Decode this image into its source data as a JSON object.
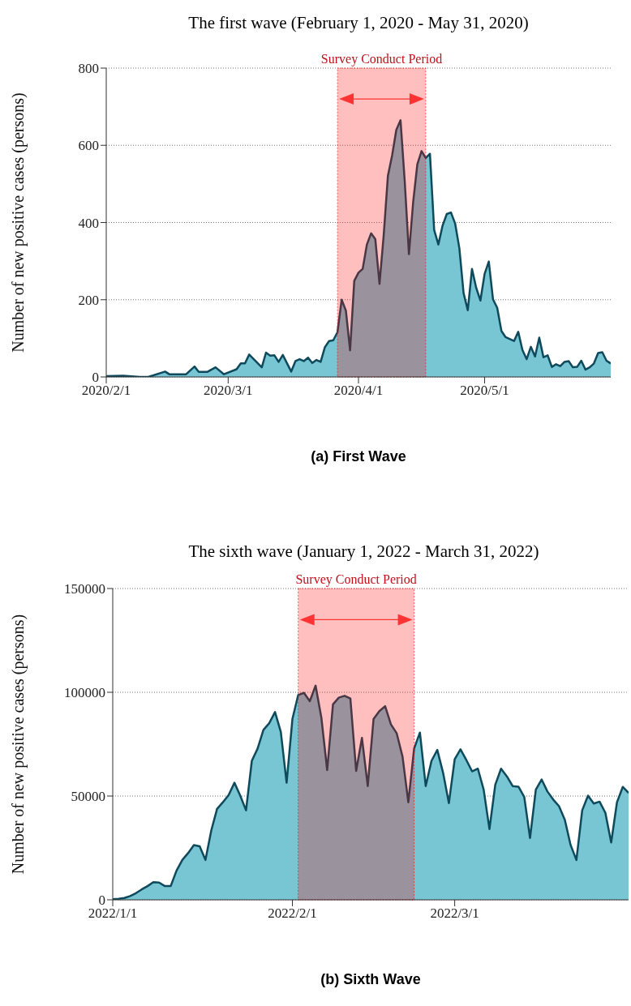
{
  "chart_data": [
    {
      "type": "area",
      "title": "The first wave (February 1, 2020 - May 31, 2020)",
      "ylabel": "Number of new positive cases (persons)",
      "annotations": [
        "(a) First Wave"
      ],
      "x": [
        "2020-02-01",
        "2020-02-05",
        "2020-02-09",
        "2020-02-11",
        "2020-02-15",
        "2020-02-16",
        "2020-02-20",
        "2020-02-22",
        "2020-02-23",
        "2020-02-25",
        "2020-02-27",
        "2020-02-29",
        "2020-03-03",
        "2020-03-04",
        "2020-03-05",
        "2020-03-06",
        "2020-03-09",
        "2020-03-10",
        "2020-03-11",
        "2020-03-12",
        "2020-03-13",
        "2020-03-14",
        "2020-03-16",
        "2020-03-17",
        "2020-03-18",
        "2020-03-19",
        "2020-03-20",
        "2020-03-21",
        "2020-03-22",
        "2020-03-23",
        "2020-03-24",
        "2020-03-25",
        "2020-03-26",
        "2020-03-27",
        "2020-03-28",
        "2020-03-29",
        "2020-03-30",
        "2020-03-31",
        "2020-04-01",
        "2020-04-02",
        "2020-04-03",
        "2020-04-04",
        "2020-04-05",
        "2020-04-06",
        "2020-04-07",
        "2020-04-08",
        "2020-04-09",
        "2020-04-10",
        "2020-04-11",
        "2020-04-12",
        "2020-04-13",
        "2020-04-14",
        "2020-04-15",
        "2020-04-16",
        "2020-04-17",
        "2020-04-18",
        "2020-04-19",
        "2020-04-20",
        "2020-04-21",
        "2020-04-22",
        "2020-04-23",
        "2020-04-24",
        "2020-04-25",
        "2020-04-26",
        "2020-04-27",
        "2020-04-28",
        "2020-04-29",
        "2020-04-30",
        "2020-05-01",
        "2020-05-02",
        "2020-05-03",
        "2020-05-04",
        "2020-05-05",
        "2020-05-06",
        "2020-05-08",
        "2020-05-09",
        "2020-05-10",
        "2020-05-11",
        "2020-05-12",
        "2020-05-13",
        "2020-05-14",
        "2020-05-15",
        "2020-05-16",
        "2020-05-17",
        "2020-05-18",
        "2020-05-19",
        "2020-05-20",
        "2020-05-21",
        "2020-05-22",
        "2020-05-23",
        "2020-05-24",
        "2020-05-25",
        "2020-05-26",
        "2020-05-27",
        "2020-05-28",
        "2020-05-29",
        "2020-05-30",
        "2020-05-31"
      ],
      "series": [
        {
          "color": "#78c5d3",
          "values": [
            2,
            3,
            0,
            0,
            14,
            7,
            7,
            27,
            13,
            13,
            25,
            7,
            20,
            35,
            35,
            58,
            25,
            63,
            55,
            56,
            39,
            57,
            14,
            41,
            46,
            41,
            50,
            36,
            44,
            39,
            77,
            93,
            95,
            116,
            200,
            172,
            69,
            249,
            270,
            280,
            343,
            372,
            357,
            241,
            367,
            521,
            574,
            640,
            665,
            507,
            318,
            452,
            551,
            585,
            567,
            578,
            381,
            343,
            392,
            422,
            426,
            397,
            333,
            217,
            173,
            280,
            231,
            198,
            267,
            299,
            201,
            179,
            119,
            103,
            93,
            117,
            70,
            46,
            78,
            53,
            102,
            51,
            56,
            26,
            33,
            28,
            39,
            41,
            25,
            26,
            42,
            19,
            25,
            35,
            62,
            64,
            42,
            35
          ]
        }
      ],
      "xlim": [
        "2020-02-01",
        "2020-05-31"
      ],
      "xticks": [
        {
          "value": "2020-02-01",
          "label": "2020/2/1"
        },
        {
          "value": "2020-03-01",
          "label": "2020/3/1"
        },
        {
          "value": "2020-04-01",
          "label": "2020/4/1"
        },
        {
          "value": "2020-05-01",
          "label": "2020/5/1"
        }
      ],
      "ylim": [
        0,
        800
      ],
      "yticks": [
        0,
        200,
        400,
        600,
        800
      ],
      "grid": "y",
      "bands": [
        {
          "axis": "x",
          "from": "2020-03-27",
          "to": "2020-04-17",
          "label": "Survey Conduct Period",
          "color": "#ff0000"
        }
      ]
    },
    {
      "type": "area",
      "title": "The sixth wave (January 1, 2022 - March 31, 2022)",
      "ylabel": "Number of new positive cases (persons)",
      "annotations": [
        "(b) Sixth Wave"
      ],
      "x": [
        "2022-01-01",
        "2022-01-02",
        "2022-01-03",
        "2022-01-04",
        "2022-01-05",
        "2022-01-06",
        "2022-01-07",
        "2022-01-08",
        "2022-01-09",
        "2022-01-10",
        "2022-01-11",
        "2022-01-12",
        "2022-01-13",
        "2022-01-14",
        "2022-01-15",
        "2022-01-16",
        "2022-01-17",
        "2022-01-18",
        "2022-01-19",
        "2022-01-20",
        "2022-01-21",
        "2022-01-22",
        "2022-01-23",
        "2022-01-24",
        "2022-01-25",
        "2022-01-26",
        "2022-01-27",
        "2022-01-28",
        "2022-01-29",
        "2022-01-30",
        "2022-01-31",
        "2022-02-01",
        "2022-02-02",
        "2022-02-03",
        "2022-02-04",
        "2022-02-05",
        "2022-02-06",
        "2022-02-07",
        "2022-02-08",
        "2022-02-09",
        "2022-02-10",
        "2022-02-11",
        "2022-02-12",
        "2022-02-13",
        "2022-02-14",
        "2022-02-15",
        "2022-02-16",
        "2022-02-17",
        "2022-02-18",
        "2022-02-19",
        "2022-02-20",
        "2022-02-21",
        "2022-02-22",
        "2022-02-23",
        "2022-02-24",
        "2022-02-25",
        "2022-02-26",
        "2022-02-27",
        "2022-02-28",
        "2022-03-01",
        "2022-03-02",
        "2022-03-03",
        "2022-03-04",
        "2022-03-05",
        "2022-03-06",
        "2022-03-07",
        "2022-03-08",
        "2022-03-09",
        "2022-03-10",
        "2022-03-11",
        "2022-03-12",
        "2022-03-13",
        "2022-03-14",
        "2022-03-15",
        "2022-03-16",
        "2022-03-17",
        "2022-03-18",
        "2022-03-19",
        "2022-03-20",
        "2022-03-21",
        "2022-03-22",
        "2022-03-23",
        "2022-03-24",
        "2022-03-25",
        "2022-03-26",
        "2022-03-27",
        "2022-03-28",
        "2022-03-29",
        "2022-03-30",
        "2022-03-31"
      ],
      "series": [
        {
          "color": "#78c5d3",
          "values": [
            300,
            500,
            900,
            1800,
            3200,
            5000,
            6600,
            8500,
            8300,
            6600,
            6600,
            14000,
            19200,
            22500,
            26400,
            25800,
            19200,
            33400,
            43800,
            47000,
            50500,
            56400,
            50200,
            43100,
            67000,
            72900,
            81900,
            85100,
            90500,
            80900,
            56400,
            87100,
            98700,
            99700,
            95700,
            103200,
            87700,
            62500,
            94200,
            97400,
            98300,
            97000,
            62100,
            78000,
            54800,
            87100,
            90900,
            93300,
            84500,
            80200,
            69000,
            47000,
            72900,
            80600,
            54800,
            67000,
            72200,
            61200,
            46600,
            67700,
            72500,
            67400,
            61900,
            63200,
            53100,
            34100,
            55400,
            63200,
            59500,
            54800,
            54500,
            49600,
            29800,
            53100,
            58000,
            52200,
            48300,
            45100,
            38600,
            26400,
            19200,
            43100,
            50200,
            46400,
            47300,
            41900,
            27600,
            47000,
            54400,
            51500
          ]
        }
      ],
      "xlim": [
        "2022-01-01",
        "2022-03-31"
      ],
      "xticks": [
        {
          "value": "2022-01-01",
          "label": "2022/1/1"
        },
        {
          "value": "2022-02-01",
          "label": "2022/2/1"
        },
        {
          "value": "2022-03-01",
          "label": "2022/3/1"
        }
      ],
      "ylim": [
        0,
        150000
      ],
      "yticks": [
        0,
        50000,
        100000,
        150000
      ],
      "grid": "y",
      "bands": [
        {
          "axis": "x",
          "from": "2022-02-02",
          "to": "2022-02-22",
          "label": "Survey Conduct Period",
          "color": "#ff0000"
        }
      ]
    }
  ]
}
